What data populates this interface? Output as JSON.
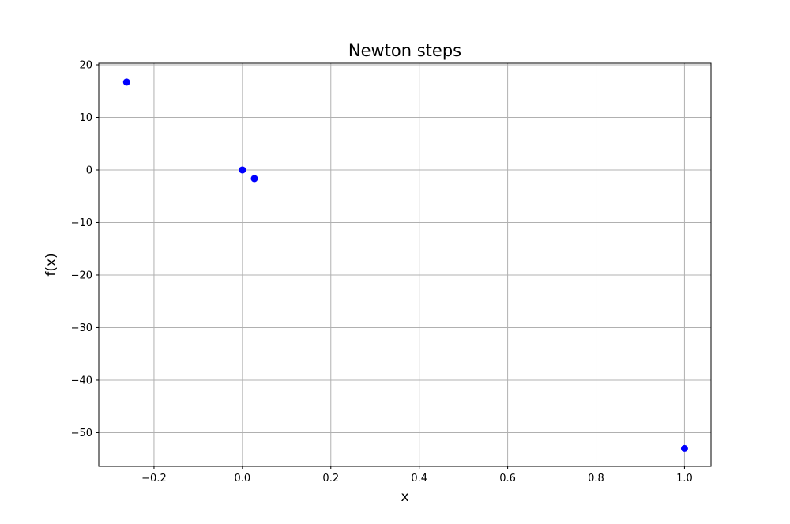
{
  "chart_data": {
    "type": "scatter",
    "title": "Newton steps",
    "xlabel": "x",
    "ylabel": "f(x)",
    "xlim": [
      -0.325,
      1.06
    ],
    "ylim": [
      -56.4,
      20.3
    ],
    "xticks": [
      -0.2,
      0.0,
      0.2,
      0.4,
      0.6,
      0.8,
      1.0
    ],
    "xtick_labels": [
      "−0.2",
      "0.0",
      "0.2",
      "0.4",
      "0.6",
      "0.8",
      "1.0"
    ],
    "yticks": [
      -50,
      -40,
      -30,
      -20,
      -10,
      0,
      10,
      20
    ],
    "ytick_labels": [
      "−50",
      "−40",
      "−30",
      "−20",
      "−10",
      "0",
      "10",
      "20"
    ],
    "grid": true,
    "marker_color": "#0000ff",
    "x": [
      1.0,
      -0.262,
      0.027,
      0.0
    ],
    "y": [
      -53.0,
      16.7,
      -1.65,
      0.0
    ]
  }
}
